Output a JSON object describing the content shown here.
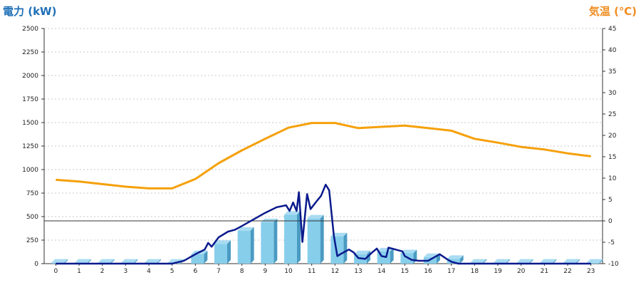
{
  "chart_data": {
    "type": "bar",
    "title": "",
    "y_left_label": "電力 (kW)",
    "y_right_label": "気温 (℃)",
    "ylim_left": [
      0,
      2500
    ],
    "ylim_right": [
      -10,
      45
    ],
    "yticks_left": [
      "0",
      "250",
      "500",
      "750",
      "1000",
      "1250",
      "1500",
      "1750",
      "2000",
      "2250",
      "2500"
    ],
    "yticks_right": [
      "-10",
      "-5",
      "0",
      "5",
      "10",
      "15",
      "20",
      "25",
      "30",
      "35",
      "40",
      "45"
    ],
    "categories": [
      "0",
      "1",
      "2",
      "3",
      "4",
      "5",
      "6",
      "7",
      "8",
      "9",
      "10",
      "11",
      "12",
      "13",
      "14",
      "15",
      "16",
      "17",
      "18",
      "19",
      "20",
      "21",
      "22",
      "23"
    ],
    "grid": true,
    "colors": {
      "bars": "#87ceeb",
      "bars_side": "#4a9bc2",
      "power_line": "#0a1a8c",
      "temp_line": "#f5a00a",
      "left_title": "#1f6fb7",
      "right_title": "#f08c1e"
    },
    "series": [
      {
        "type": "bar",
        "axis": "left",
        "values": [
          10,
          10,
          10,
          10,
          10,
          10,
          100,
          210,
          350,
          440,
          520,
          480,
          290,
          100,
          130,
          110,
          70,
          50,
          10,
          10,
          10,
          10,
          10,
          10
        ]
      },
      {
        "type": "line",
        "axis": "left",
        "points": [
          [
            0,
            0
          ],
          [
            1,
            0
          ],
          [
            2,
            0
          ],
          [
            3,
            0
          ],
          [
            4,
            0
          ],
          [
            5,
            0
          ],
          [
            5.5,
            30
          ],
          [
            6,
            100
          ],
          [
            6.4,
            150
          ],
          [
            6.55,
            220
          ],
          [
            6.7,
            180
          ],
          [
            7,
            280
          ],
          [
            7.4,
            340
          ],
          [
            7.7,
            360
          ],
          [
            8,
            400
          ],
          [
            8.5,
            470
          ],
          [
            9,
            540
          ],
          [
            9.5,
            600
          ],
          [
            9.9,
            620
          ],
          [
            10.05,
            560
          ],
          [
            10.2,
            650
          ],
          [
            10.35,
            560
          ],
          [
            10.45,
            760
          ],
          [
            10.6,
            230
          ],
          [
            10.8,
            740
          ],
          [
            10.95,
            580
          ],
          [
            11.2,
            660
          ],
          [
            11.4,
            720
          ],
          [
            11.6,
            840
          ],
          [
            11.75,
            780
          ],
          [
            11.95,
            300
          ],
          [
            12.1,
            80
          ],
          [
            12.3,
            110
          ],
          [
            12.6,
            150
          ],
          [
            12.8,
            120
          ],
          [
            13,
            60
          ],
          [
            13.3,
            50
          ],
          [
            13.6,
            120
          ],
          [
            13.8,
            160
          ],
          [
            14,
            80
          ],
          [
            14.2,
            70
          ],
          [
            14.3,
            170
          ],
          [
            14.6,
            150
          ],
          [
            14.9,
            130
          ],
          [
            15,
            80
          ],
          [
            15.3,
            40
          ],
          [
            15.6,
            30
          ],
          [
            16,
            30
          ],
          [
            16.5,
            100
          ],
          [
            16.8,
            50
          ],
          [
            17,
            20
          ],
          [
            17.3,
            0
          ],
          [
            18,
            0
          ],
          [
            19,
            0
          ],
          [
            20,
            0
          ],
          [
            21,
            0
          ],
          [
            22,
            0
          ],
          [
            23,
            0
          ]
        ]
      },
      {
        "type": "line",
        "axis": "right",
        "values": [
          9.6,
          9.2,
          8.6,
          8.0,
          7.6,
          7.6,
          9.8,
          13.5,
          16.5,
          19.2,
          21.8,
          22.9,
          22.9,
          21.7,
          22.0,
          22.3,
          21.7,
          21.1,
          19.2,
          18.3,
          17.3,
          16.7,
          15.8,
          15.1
        ]
      }
    ]
  }
}
